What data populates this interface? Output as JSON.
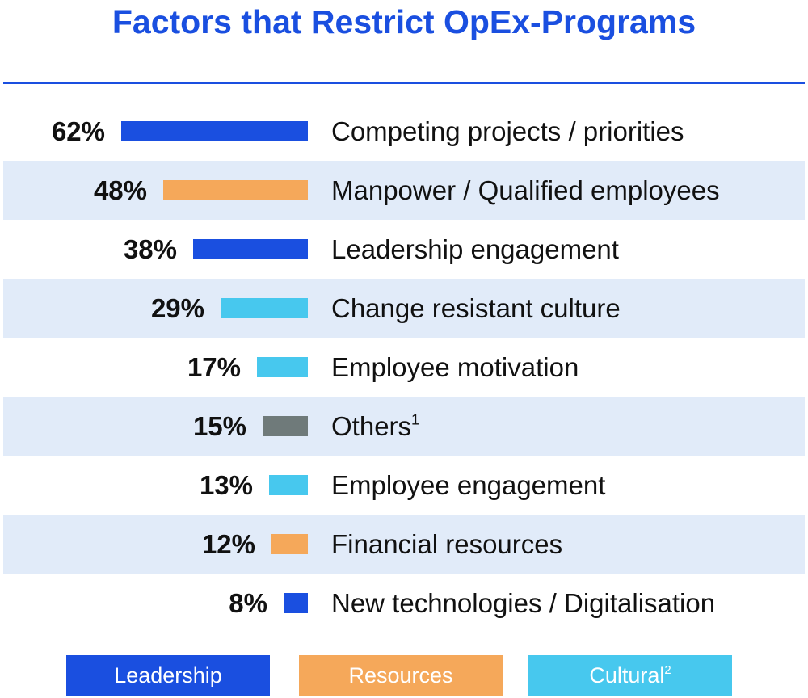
{
  "title": "Factors that Restrict OpEx-Programs",
  "colors": {
    "leadership": "#1a4fe0",
    "resources": "#f5a85a",
    "cultural": "#47c8ee",
    "other": "#6f7a7a",
    "row_shade": "#e1ebf9"
  },
  "chart_data": {
    "type": "bar",
    "orientation": "horizontal",
    "title": "Factors that Restrict OpEx-Programs",
    "unit": "%",
    "categories": [
      "Competing projects / priorities",
      "Manpower / Qualified employees",
      "Leadership engagement",
      "Change resistant culture",
      "Employee motivation",
      "Others",
      "Employee engagement",
      "Financial resources",
      "New technologies / Digitalisation"
    ],
    "values": [
      62,
      48,
      38,
      29,
      17,
      15,
      13,
      12,
      8
    ],
    "groups": [
      "leadership",
      "resources",
      "leadership",
      "cultural",
      "cultural",
      "other",
      "cultural",
      "resources",
      "leadership"
    ],
    "bars": [
      {
        "value": 62,
        "value_label": "62%",
        "label": "Competing projects / priorities",
        "footnote": "",
        "group": "leadership"
      },
      {
        "value": 48,
        "value_label": "48%",
        "label": "Manpower / Qualified employees",
        "footnote": "",
        "group": "resources"
      },
      {
        "value": 38,
        "value_label": "38%",
        "label": "Leadership engagement",
        "footnote": "",
        "group": "leadership"
      },
      {
        "value": 29,
        "value_label": "29%",
        "label": "Change resistant culture",
        "footnote": "",
        "group": "cultural"
      },
      {
        "value": 17,
        "value_label": "17%",
        "label": "Employee motivation",
        "footnote": "",
        "group": "cultural"
      },
      {
        "value": 15,
        "value_label": "15%",
        "label": "Others",
        "footnote": "1",
        "group": "other"
      },
      {
        "value": 13,
        "value_label": "13%",
        "label": "Employee engagement",
        "footnote": "",
        "group": "cultural"
      },
      {
        "value": 12,
        "value_label": "12%",
        "label": "Financial resources",
        "footnote": "",
        "group": "resources"
      },
      {
        "value": 8,
        "value_label": "8%",
        "label": "New technologies / Digitalisation",
        "footnote": "",
        "group": "leadership"
      }
    ],
    "xlim": [
      0,
      62
    ],
    "grid": false,
    "legend_position": "bottom",
    "legend": [
      {
        "group": "leadership",
        "label": "Leadership",
        "footnote": ""
      },
      {
        "group": "resources",
        "label": "Resources",
        "footnote": ""
      },
      {
        "group": "cultural",
        "label": "Cultural",
        "footnote": "2"
      }
    ]
  }
}
